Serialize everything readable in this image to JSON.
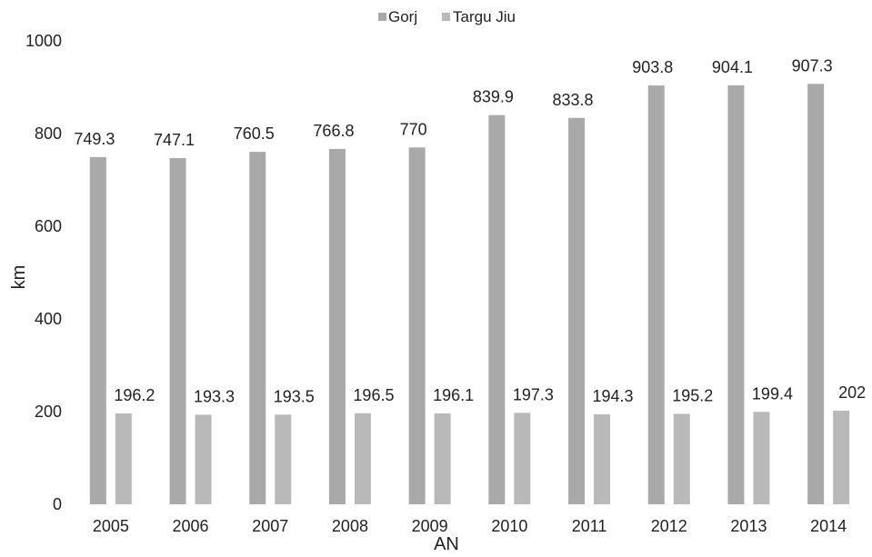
{
  "chart_data": {
    "type": "bar",
    "categories": [
      "2005",
      "2006",
      "2007",
      "2008",
      "2009",
      "2010",
      "2011",
      "2012",
      "2013",
      "2014"
    ],
    "series": [
      {
        "name": "Gorj",
        "values": [
          749.3,
          747.1,
          760.5,
          766.8,
          770,
          839.9,
          833.8,
          903.8,
          904.1,
          907.3
        ],
        "labels": [
          "749.3",
          "747.1",
          "760.5",
          "766.8",
          "770",
          "839.9",
          "833.8",
          "903.8",
          "904.1",
          "907.3"
        ],
        "color": "#a9a9a9"
      },
      {
        "name": "Targu Jiu",
        "values": [
          196.2,
          193.3,
          193.5,
          196.5,
          196.1,
          197.3,
          194.3,
          195.2,
          199.4,
          202
        ],
        "labels": [
          "196.2",
          "193.3",
          "193.5",
          "196.5",
          "196.1",
          "197.3",
          "194.3",
          "195.2",
          "199.4",
          "202"
        ],
        "color": "#b9b9b9"
      }
    ],
    "xlabel": "AN",
    "ylabel": "km",
    "ylim": [
      0,
      1000
    ],
    "yticks": [
      "0",
      "200",
      "400",
      "600",
      "800",
      "1000"
    ],
    "grid": false,
    "legend": "top"
  }
}
